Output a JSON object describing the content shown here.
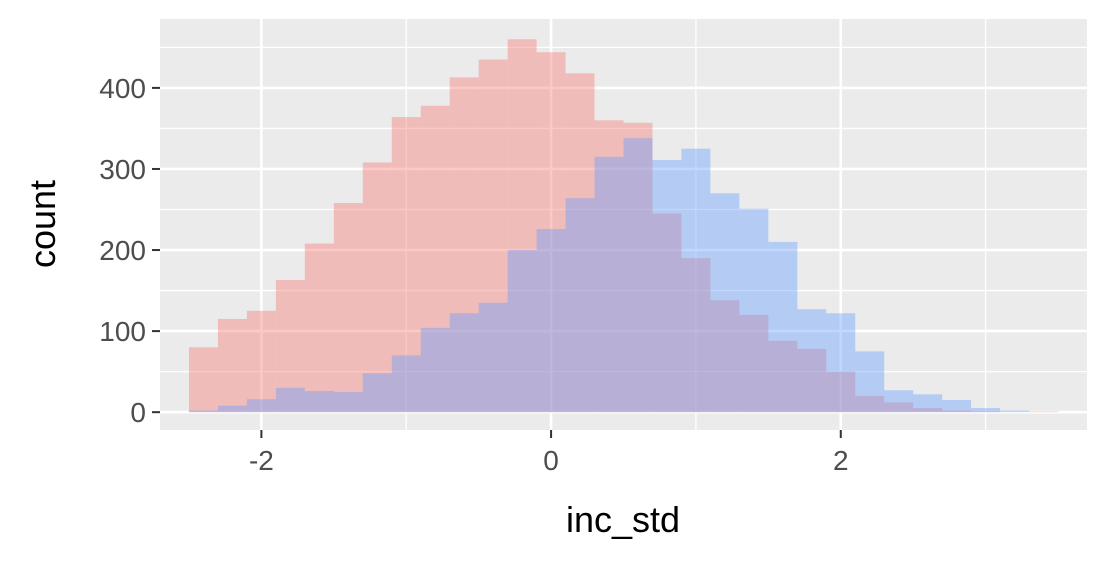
{
  "chart_data": {
    "type": "bar",
    "xlabel": "inc_std",
    "ylabel": "count",
    "xlim": [
      -2.7,
      3.7
    ],
    "ylim": [
      -22,
      485
    ],
    "x_ticks": [
      -2,
      0,
      2
    ],
    "x_tick_labels": [
      "-2",
      "0",
      "2"
    ],
    "y_ticks": [
      0,
      100,
      200,
      300,
      400
    ],
    "y_tick_labels": [
      "0",
      "100",
      "200",
      "300",
      "400"
    ],
    "grid": true,
    "legend": "none",
    "background": "#EBEBEB",
    "bin_width": 0.2,
    "series": [
      {
        "color": "#F8766D",
        "opacity": 0.4,
        "bins": [
          {
            "x0": -2.5,
            "count": 80
          },
          {
            "x0": -2.3,
            "count": 115
          },
          {
            "x0": -2.1,
            "count": 125
          },
          {
            "x0": -1.9,
            "count": 163
          },
          {
            "x0": -1.7,
            "count": 208
          },
          {
            "x0": -1.5,
            "count": 258
          },
          {
            "x0": -1.3,
            "count": 308
          },
          {
            "x0": -1.1,
            "count": 364
          },
          {
            "x0": -0.9,
            "count": 378
          },
          {
            "x0": -0.7,
            "count": 413
          },
          {
            "x0": -0.5,
            "count": 435
          },
          {
            "x0": -0.3,
            "count": 460
          },
          {
            "x0": -0.1,
            "count": 444
          },
          {
            "x0": 0.1,
            "count": 418
          },
          {
            "x0": 0.3,
            "count": 360
          },
          {
            "x0": 0.5,
            "count": 357
          },
          {
            "x0": 0.7,
            "count": 245
          },
          {
            "x0": 0.9,
            "count": 190
          },
          {
            "x0": 1.1,
            "count": 138
          },
          {
            "x0": 1.3,
            "count": 120
          },
          {
            "x0": 1.5,
            "count": 88
          },
          {
            "x0": 1.7,
            "count": 78
          },
          {
            "x0": 1.9,
            "count": 50
          },
          {
            "x0": 2.1,
            "count": 20
          },
          {
            "x0": 2.3,
            "count": 12
          },
          {
            "x0": 2.5,
            "count": 5
          },
          {
            "x0": 2.7,
            "count": 2
          },
          {
            "x0": 2.9,
            "count": 1
          },
          {
            "x0": 3.1,
            "count": 0
          },
          {
            "x0": 3.3,
            "count": 1
          }
        ]
      },
      {
        "color": "#619CFF",
        "opacity": 0.4,
        "bins": [
          {
            "x0": -2.5,
            "count": 2
          },
          {
            "x0": -2.3,
            "count": 8
          },
          {
            "x0": -2.1,
            "count": 16
          },
          {
            "x0": -1.9,
            "count": 30
          },
          {
            "x0": -1.7,
            "count": 26
          },
          {
            "x0": -1.5,
            "count": 25
          },
          {
            "x0": -1.3,
            "count": 48
          },
          {
            "x0": -1.1,
            "count": 70
          },
          {
            "x0": -0.9,
            "count": 104
          },
          {
            "x0": -0.7,
            "count": 122
          },
          {
            "x0": -0.5,
            "count": 135
          },
          {
            "x0": -0.3,
            "count": 200
          },
          {
            "x0": -0.1,
            "count": 226
          },
          {
            "x0": 0.1,
            "count": 264
          },
          {
            "x0": 0.3,
            "count": 315
          },
          {
            "x0": 0.5,
            "count": 338
          },
          {
            "x0": 0.7,
            "count": 311
          },
          {
            "x0": 0.9,
            "count": 325
          },
          {
            "x0": 1.1,
            "count": 270
          },
          {
            "x0": 1.3,
            "count": 251
          },
          {
            "x0": 1.5,
            "count": 210
          },
          {
            "x0": 1.7,
            "count": 127
          },
          {
            "x0": 1.9,
            "count": 122
          },
          {
            "x0": 2.1,
            "count": 75
          },
          {
            "x0": 2.3,
            "count": 27
          },
          {
            "x0": 2.5,
            "count": 22
          },
          {
            "x0": 2.7,
            "count": 15
          },
          {
            "x0": 2.9,
            "count": 5
          },
          {
            "x0": 3.1,
            "count": 2
          },
          {
            "x0": 3.3,
            "count": 0
          }
        ]
      }
    ]
  }
}
